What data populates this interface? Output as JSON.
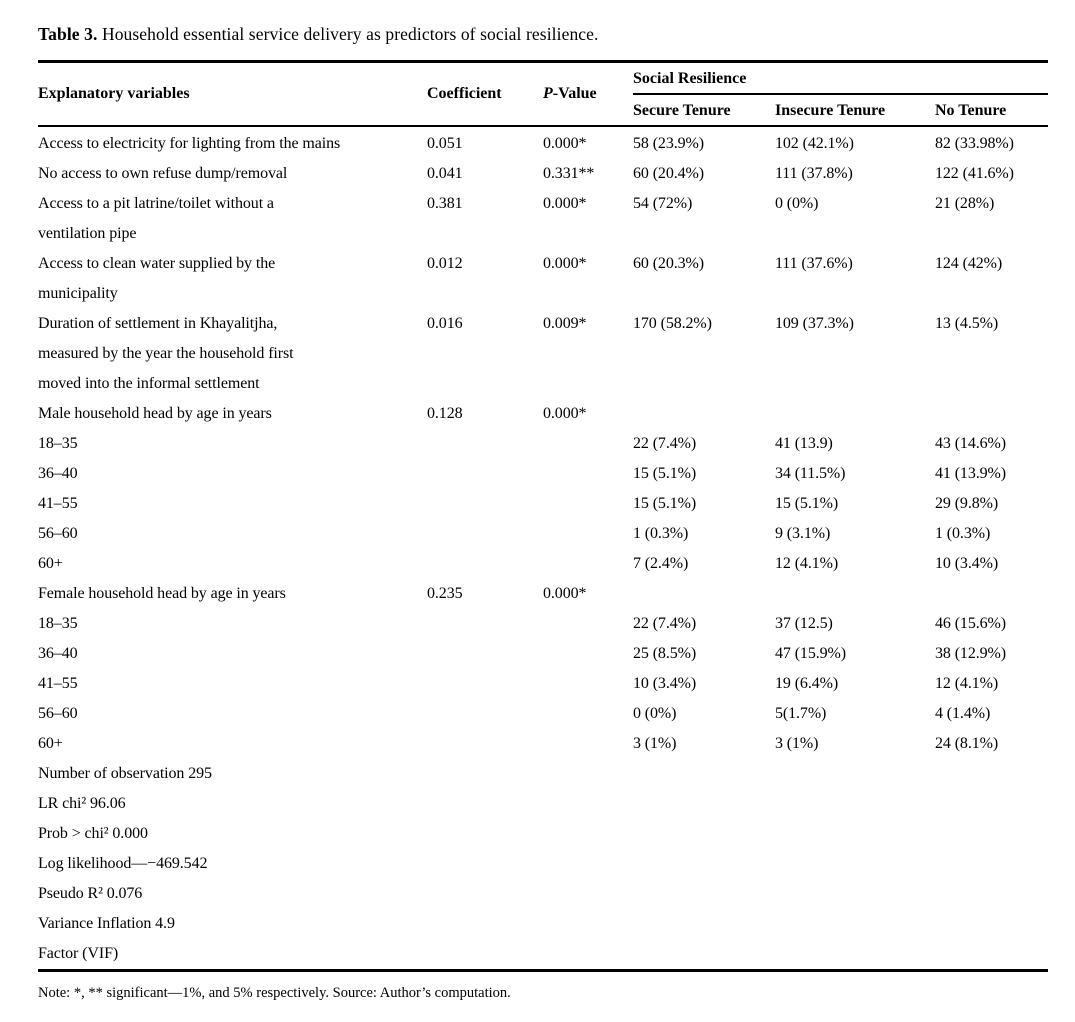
{
  "page": {
    "title_bold": "Table 3.",
    "title_rest": " Household essential service delivery as predictors of social resilience.",
    "note": "Note: *, ** significant—1%, and 5% respectively. Source: Author’s computation."
  },
  "table": {
    "headers": {
      "explanatory": "Explanatory variables",
      "coefficient": "Coefficient",
      "p_italic": "P",
      "p_rest": "-Value",
      "group": "Social Resilience",
      "secure": "Secure Tenure",
      "insecure": "Insecure Tenure",
      "no_tenure": "No Tenure"
    },
    "rows": [
      {
        "variable": "Access to electricity for lighting from the mains",
        "coefficient": "0.051",
        "p_value": "0.000*",
        "secure": "58 (23.9%)",
        "insecure": "102 (42.1%)",
        "no_tenure": "82 (33.98%)"
      },
      {
        "variable": "No access to own refuse dump/removal",
        "coefficient": "0.041",
        "p_value": "0.331**",
        "secure": "60 (20.4%)",
        "insecure": "111 (37.8%)",
        "no_tenure": "122 (41.6%)"
      },
      {
        "variable": "Access to a pit latrine/toilet without a\nventilation pipe",
        "coefficient": "0.381",
        "p_value": "0.000*",
        "secure": "54 (72%)",
        "insecure": "0 (0%)",
        "no_tenure": "21 (28%)"
      },
      {
        "variable": "Access to clean water supplied by the\nmunicipality",
        "coefficient": "0.012",
        "p_value": "0.000*",
        "secure": "60 (20.3%)",
        "insecure": "111 (37.6%)",
        "no_tenure": "124 (42%)"
      },
      {
        "variable": "Duration of settlement in Khayalitjha,\nmeasured by the year the household first\nmoved into the informal settlement",
        "coefficient": "0.016",
        "p_value": "0.009*",
        "secure": "170 (58.2%)",
        "insecure": "109 (37.3%)",
        "no_tenure": "13 (4.5%)"
      },
      {
        "variable": "Male household head by age in years",
        "coefficient": "0.128",
        "p_value": "0.000*",
        "secure": "",
        "insecure": "",
        "no_tenure": ""
      },
      {
        "variable": "18–35",
        "coefficient": "",
        "p_value": "",
        "secure": "22 (7.4%)",
        "insecure": "41 (13.9)",
        "no_tenure": "43 (14.6%)"
      },
      {
        "variable": "36–40",
        "coefficient": "",
        "p_value": "",
        "secure": "15 (5.1%)",
        "insecure": "34 (11.5%)",
        "no_tenure": "41 (13.9%)"
      },
      {
        "variable": "41–55",
        "coefficient": "",
        "p_value": "",
        "secure": "15 (5.1%)",
        "insecure": "15 (5.1%)",
        "no_tenure": "29 (9.8%)"
      },
      {
        "variable": "56–60",
        "coefficient": "",
        "p_value": "",
        "secure": "1 (0.3%)",
        "insecure": "9 (3.1%)",
        "no_tenure": "1 (0.3%)"
      },
      {
        "variable": "60+",
        "coefficient": "",
        "p_value": "",
        "secure": "7 (2.4%)",
        "insecure": "12 (4.1%)",
        "no_tenure": "10 (3.4%)"
      },
      {
        "variable": "Female household head by age in years",
        "coefficient": "0.235",
        "p_value": "0.000*",
        "secure": "",
        "insecure": "",
        "no_tenure": ""
      },
      {
        "variable": "18–35",
        "coefficient": "",
        "p_value": "",
        "secure": "22 (7.4%)",
        "insecure": "37 (12.5)",
        "no_tenure": "46 (15.6%)"
      },
      {
        "variable": "36–40",
        "coefficient": "",
        "p_value": "",
        "secure": "25 (8.5%)",
        "insecure": "47 (15.9%)",
        "no_tenure": "38 (12.9%)"
      },
      {
        "variable": "41–55",
        "coefficient": "",
        "p_value": "",
        "secure": "10 (3.4%)",
        "insecure": "19 (6.4%)",
        "no_tenure": "12 (4.1%)"
      },
      {
        "variable": "56–60",
        "coefficient": "",
        "p_value": "",
        "secure": "0 (0%)",
        "insecure": "5(1.7%)",
        "no_tenure": "4 (1.4%)"
      },
      {
        "variable": "60+",
        "coefficient": "",
        "p_value": "",
        "secure": "3 (1%)",
        "insecure": "3 (1%)",
        "no_tenure": "24 (8.1%)"
      },
      {
        "variable": "Number of observation 295",
        "coefficient": "",
        "p_value": "",
        "secure": "",
        "insecure": "",
        "no_tenure": ""
      },
      {
        "variable": "LR chi² 96.06",
        "coefficient": "",
        "p_value": "",
        "secure": "",
        "insecure": "",
        "no_tenure": ""
      },
      {
        "variable": "Prob > chi² 0.000",
        "coefficient": "",
        "p_value": "",
        "secure": "",
        "insecure": "",
        "no_tenure": ""
      },
      {
        "variable": "Log likelihood—−469.542",
        "coefficient": "",
        "p_value": "",
        "secure": "",
        "insecure": "",
        "no_tenure": ""
      },
      {
        "variable": "Pseudo R² 0.076",
        "coefficient": "",
        "p_value": "",
        "secure": "",
        "insecure": "",
        "no_tenure": ""
      },
      {
        "variable": "Variance Inflation 4.9",
        "coefficient": "",
        "p_value": "",
        "secure": "",
        "insecure": "",
        "no_tenure": ""
      },
      {
        "variable": "Factor (VIF)",
        "coefficient": "",
        "p_value": "",
        "secure": "",
        "insecure": "",
        "no_tenure": ""
      }
    ]
  }
}
